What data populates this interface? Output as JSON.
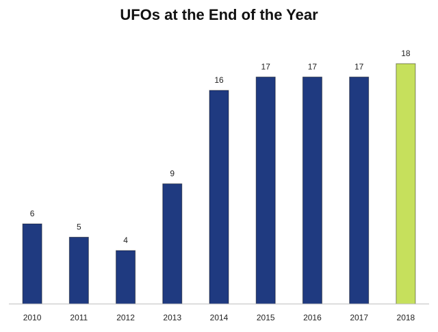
{
  "chart_data": {
    "type": "bar",
    "title": "UFOs at the End of the Year",
    "categories": [
      "2010",
      "2011",
      "2012",
      "2013",
      "2014",
      "2015",
      "2016",
      "2017",
      "2018"
    ],
    "values": [
      6,
      5,
      4,
      9,
      16,
      17,
      17,
      17,
      18
    ],
    "colors": [
      "#1f3a80",
      "#1f3a80",
      "#1f3a80",
      "#1f3a80",
      "#1f3a80",
      "#1f3a80",
      "#1f3a80",
      "#1f3a80",
      "#c6e05c"
    ],
    "data_labels": true,
    "grid": false
  }
}
